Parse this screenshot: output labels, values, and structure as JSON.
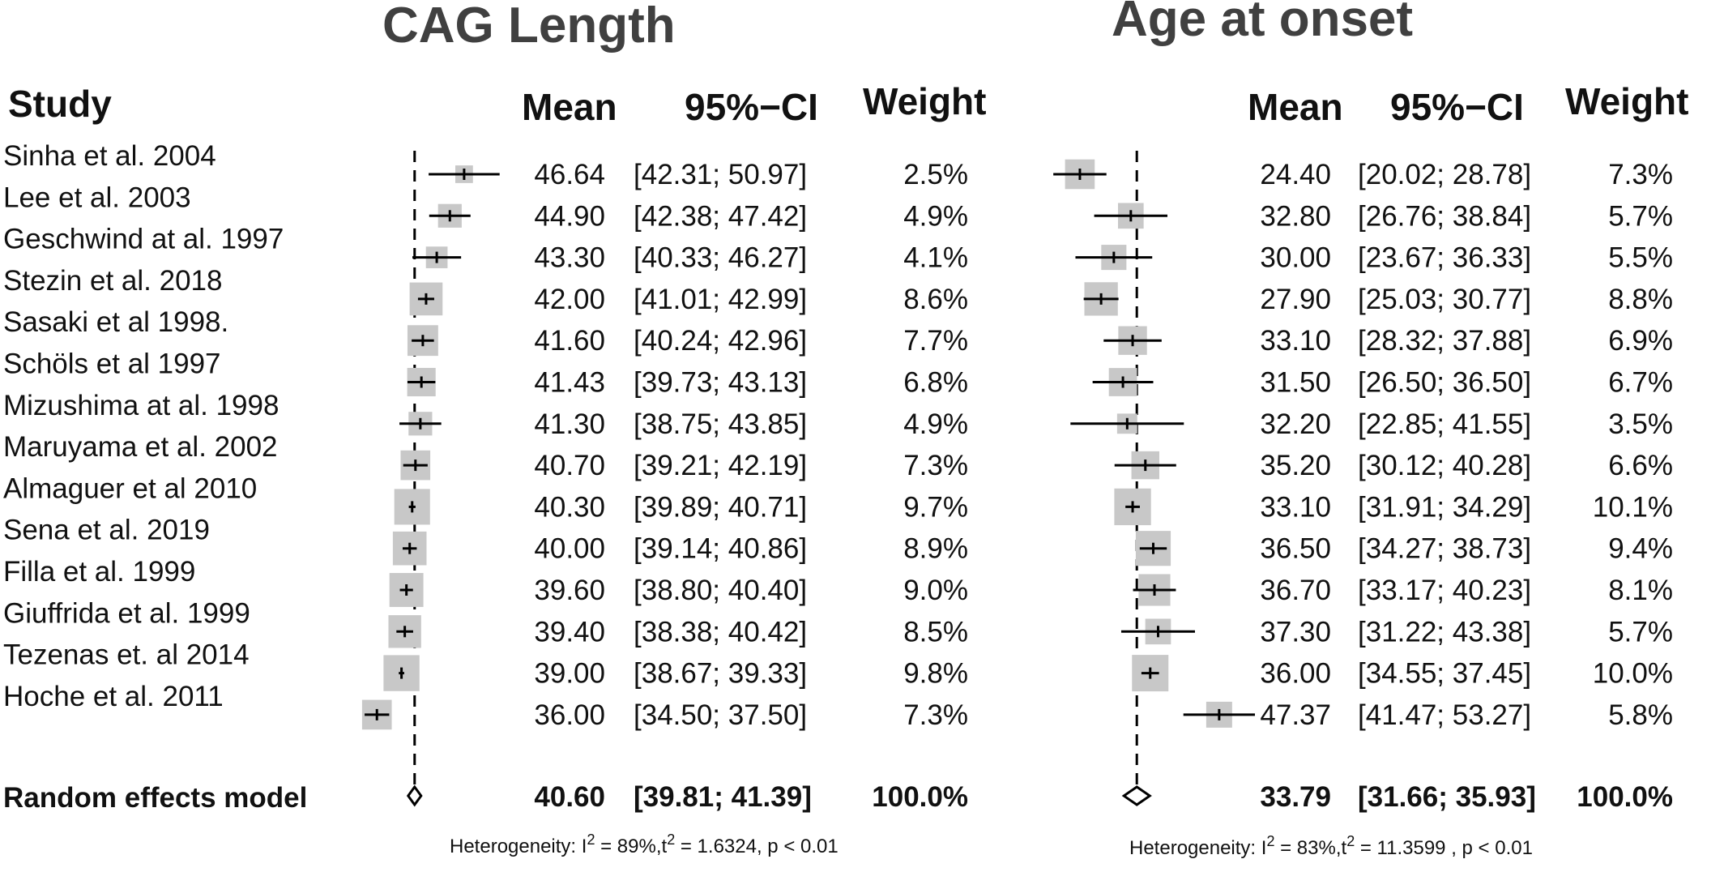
{
  "panel_titles": [
    "CAG Length",
    "Age at onset"
  ],
  "headers": {
    "study": "Study",
    "mean": "Mean",
    "ci": "95%−CI",
    "weight": "Weight"
  },
  "summary_label": "Random effects model",
  "colors": {
    "weight_box": "#c8c8c8",
    "lines": "#000000",
    "title": "#404040"
  },
  "chart_data": [
    {
      "type": "forest",
      "title": "CAG Length",
      "summary_line_x": 40.6,
      "studies": [
        {
          "study": "Sinha et al. 2004",
          "mean": 46.64,
          "ci": [
            42.31,
            50.97
          ],
          "mean_text": "46.64",
          "ci_text": "[42.31; 50.97]",
          "weight": 2.5,
          "weight_text": "2.5%"
        },
        {
          "study": "Lee et al. 2003",
          "mean": 44.9,
          "ci": [
            42.38,
            47.42
          ],
          "mean_text": "44.90",
          "ci_text": "[42.38; 47.42]",
          "weight": 4.9,
          "weight_text": "4.9%"
        },
        {
          "study": "Geschwind at al. 1997",
          "mean": 43.3,
          "ci": [
            40.33,
            46.27
          ],
          "mean_text": "43.30",
          "ci_text": "[40.33; 46.27]",
          "weight": 4.1,
          "weight_text": "4.1%"
        },
        {
          "study": "Stezin  et al. 2018",
          "mean": 42.0,
          "ci": [
            41.01,
            42.99
          ],
          "mean_text": "42.00",
          "ci_text": "[41.01; 42.99]",
          "weight": 8.6,
          "weight_text": "8.6%"
        },
        {
          "study": "Sasaki et al 1998.",
          "mean": 41.6,
          "ci": [
            40.24,
            42.96
          ],
          "mean_text": "41.60",
          "ci_text": "[40.24; 42.96]",
          "weight": 7.7,
          "weight_text": "7.7%"
        },
        {
          "study": "Schöls et al 1997",
          "mean": 41.43,
          "ci": [
            39.73,
            43.13
          ],
          "mean_text": "41.43",
          "ci_text": "[39.73; 43.13]",
          "weight": 6.8,
          "weight_text": "6.8%"
        },
        {
          "study": "Mizushima at al. 1998",
          "mean": 41.3,
          "ci": [
            38.75,
            43.85
          ],
          "mean_text": "41.30",
          "ci_text": "[38.75; 43.85]",
          "weight": 4.9,
          "weight_text": "4.9%"
        },
        {
          "study": "Maruyama et al. 2002",
          "mean": 40.7,
          "ci": [
            39.21,
            42.19
          ],
          "mean_text": "40.70",
          "ci_text": "[39.21; 42.19]",
          "weight": 7.3,
          "weight_text": "7.3%"
        },
        {
          "study": "Almaguer et al 2010",
          "mean": 40.3,
          "ci": [
            39.89,
            40.71
          ],
          "mean_text": "40.30",
          "ci_text": "[39.89; 40.71]",
          "weight": 9.7,
          "weight_text": "9.7%"
        },
        {
          "study": "Sena et al. 2019",
          "mean": 40.0,
          "ci": [
            39.14,
            40.86
          ],
          "mean_text": "40.00",
          "ci_text": "[39.14; 40.86]",
          "weight": 8.9,
          "weight_text": "8.9%"
        },
        {
          "study": "Filla et al. 1999",
          "mean": 39.6,
          "ci": [
            38.8,
            40.4
          ],
          "mean_text": "39.60",
          "ci_text": "[38.80; 40.40]",
          "weight": 9.0,
          "weight_text": "9.0%"
        },
        {
          "study": "Giuffrida et al. 1999",
          "mean": 39.4,
          "ci": [
            38.38,
            40.42
          ],
          "mean_text": "39.40",
          "ci_text": "[38.38; 40.42]",
          "weight": 8.5,
          "weight_text": "8.5%"
        },
        {
          "study": "Tezenas et. al 2014",
          "mean": 39.0,
          "ci": [
            38.67,
            39.33
          ],
          "mean_text": "39.00",
          "ci_text": "[38.67; 39.33]",
          "weight": 9.8,
          "weight_text": "9.8%"
        },
        {
          "study": "Hoche et al. 2011",
          "mean": 36.0,
          "ci": [
            34.5,
            37.5
          ],
          "mean_text": "36.00",
          "ci_text": "[34.50; 37.50]",
          "weight": 7.3,
          "weight_text": "7.3%"
        }
      ],
      "summary": {
        "mean": 40.6,
        "ci": [
          39.81,
          41.39
        ],
        "mean_text": "40.60",
        "ci_text": "[39.81; 41.39]",
        "weight_text": "100.0%"
      },
      "heterogeneity": {
        "prefix": "Heterogeneity: ",
        "i2_label": "I",
        "i2_value": " = 89%,",
        "tau2_label": "t",
        "tau2_value": " = 1.6324,",
        "p_text": " p < 0.01"
      }
    },
    {
      "type": "forest",
      "title": "Age at onset",
      "summary_line_x": 33.79,
      "studies": [
        {
          "study": "Sinha et al. 2004",
          "mean": 24.4,
          "ci": [
            20.02,
            28.78
          ],
          "mean_text": "24.40",
          "ci_text": "[20.02; 28.78]",
          "weight": 7.3,
          "weight_text": "7.3%"
        },
        {
          "study": "Lee et al. 2003",
          "mean": 32.8,
          "ci": [
            26.76,
            38.84
          ],
          "mean_text": "32.80",
          "ci_text": "[26.76; 38.84]",
          "weight": 5.7,
          "weight_text": "5.7%"
        },
        {
          "study": "Geschwind at al. 1997",
          "mean": 30.0,
          "ci": [
            23.67,
            36.33
          ],
          "mean_text": "30.00",
          "ci_text": "[23.67; 36.33]",
          "weight": 5.5,
          "weight_text": "5.5%"
        },
        {
          "study": "Stezin  et al. 2018",
          "mean": 27.9,
          "ci": [
            25.03,
            30.77
          ],
          "mean_text": "27.90",
          "ci_text": "[25.03; 30.77]",
          "weight": 8.8,
          "weight_text": "8.8%"
        },
        {
          "study": "Sasaki et al 1998.",
          "mean": 33.1,
          "ci": [
            28.32,
            37.88
          ],
          "mean_text": "33.10",
          "ci_text": "[28.32; 37.88]",
          "weight": 6.9,
          "weight_text": "6.9%"
        },
        {
          "study": "Schöls et al 1997",
          "mean": 31.5,
          "ci": [
            26.5,
            36.5
          ],
          "mean_text": "31.50",
          "ci_text": "[26.50; 36.50]",
          "weight": 6.7,
          "weight_text": "6.7%"
        },
        {
          "study": "Mizushima at al. 1998",
          "mean": 32.2,
          "ci": [
            22.85,
            41.55
          ],
          "mean_text": "32.20",
          "ci_text": "[22.85; 41.55]",
          "weight": 3.5,
          "weight_text": "3.5%"
        },
        {
          "study": "Maruyama et al. 2002",
          "mean": 35.2,
          "ci": [
            30.12,
            40.28
          ],
          "mean_text": "35.20",
          "ci_text": "[30.12; 40.28]",
          "weight": 6.6,
          "weight_text": "6.6%"
        },
        {
          "study": "Almaguer et al 2010",
          "mean": 33.1,
          "ci": [
            31.91,
            34.29
          ],
          "mean_text": "33.10",
          "ci_text": "[31.91; 34.29]",
          "weight": 10.1,
          "weight_text": "10.1%"
        },
        {
          "study": "Sena et al. 2019",
          "mean": 36.5,
          "ci": [
            34.27,
            38.73
          ],
          "mean_text": "36.50",
          "ci_text": "[34.27; 38.73]",
          "weight": 9.4,
          "weight_text": "9.4%"
        },
        {
          "study": "Filla et al. 1999",
          "mean": 36.7,
          "ci": [
            33.17,
            40.23
          ],
          "mean_text": "36.70",
          "ci_text": "[33.17; 40.23]",
          "weight": 8.1,
          "weight_text": "8.1%"
        },
        {
          "study": "Giuffrida et al. 1999",
          "mean": 37.3,
          "ci": [
            31.22,
            43.38
          ],
          "mean_text": "37.30",
          "ci_text": "[31.22; 43.38]",
          "weight": 5.7,
          "weight_text": "5.7%"
        },
        {
          "study": "Tezenas et. al 2014",
          "mean": 36.0,
          "ci": [
            34.55,
            37.45
          ],
          "mean_text": "36.00",
          "ci_text": "[34.55; 37.45]",
          "weight": 10.0,
          "weight_text": "10.0%"
        },
        {
          "study": "Hoche et al. 2011",
          "mean": 47.37,
          "ci": [
            41.47,
            53.27
          ],
          "mean_text": "47.37",
          "ci_text": "[41.47; 53.27]",
          "weight": 5.8,
          "weight_text": "5.8%"
        }
      ],
      "summary": {
        "mean": 33.79,
        "ci": [
          31.66,
          35.93
        ],
        "mean_text": "33.79",
        "ci_text": "[31.66; 35.93]",
        "weight_text": "100.0%"
      },
      "heterogeneity": {
        "prefix": "Heterogeneity: ",
        "i2_label": "I",
        "i2_value": " = 83%,",
        "tau2_label": "t",
        "tau2_value": " = 11.3599",
        "p_text": " , p < 0.01"
      }
    }
  ]
}
